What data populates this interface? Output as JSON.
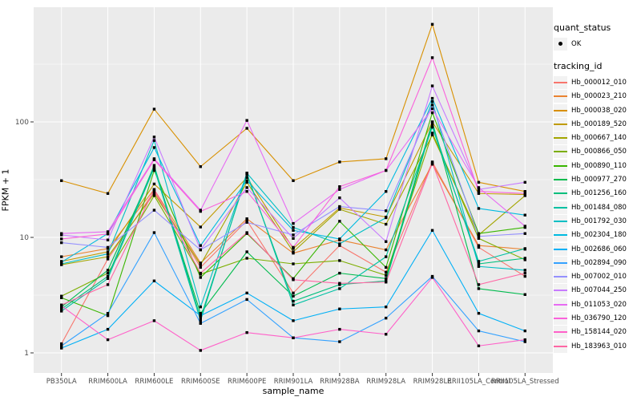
{
  "chart_data": {
    "type": "line",
    "title": "",
    "xlabel": "sample_name",
    "ylabel": "FPKM + 1",
    "y_scale": "log10",
    "y_ticks": [
      1,
      10,
      100
    ],
    "y_minor_ticks": [
      3.1623,
      31.623,
      316.23
    ],
    "ylim": [
      0.67,
      970
    ],
    "panel_bg": "#EBEBEB",
    "grid_color": "#FFFFFF",
    "point_color": "#000000",
    "tick_color": "#333333",
    "tick_label_color": "#4D4D4D",
    "categories": [
      "PB350LA",
      "RRIM600LA",
      "RRIM600LE",
      "RRIM600SE",
      "RRIM600PE",
      "RRIM901LA",
      "RRIM928BA",
      "RRIM928LA",
      "RRIM928LE",
      "RRII105LA_Control",
      "RRII105LA_Stressed"
    ],
    "series": [
      {
        "name": "Hb_000012_010",
        "color": "#F8766D",
        "values": [
          1.2,
          6.5,
          25,
          5.5,
          14,
          3.3,
          8.5,
          5.0,
          45,
          8.2,
          4.6
        ]
      },
      {
        "name": "Hb_000023_210",
        "color": "#EA8331",
        "values": [
          6.8,
          8.0,
          26,
          6.0,
          14.5,
          7.3,
          9.5,
          7.8,
          43,
          8.5,
          7.9
        ]
      },
      {
        "name": "Hb_000038_020",
        "color": "#D89000",
        "values": [
          31,
          24,
          129,
          41,
          88,
          31,
          45,
          48,
          700,
          30,
          25
        ]
      },
      {
        "name": "Hb_000189_520",
        "color": "#C09B00",
        "values": [
          6.2,
          7.5,
          29,
          12.3,
          33,
          8.0,
          18,
          15,
          100,
          24,
          23.5
        ]
      },
      {
        "name": "Hb_000667_140",
        "color": "#A3A500",
        "values": [
          5.8,
          6.8,
          24,
          5.8,
          30,
          7.5,
          17.5,
          13,
          77,
          10.5,
          23
        ]
      },
      {
        "name": "Hb_000866_050",
        "color": "#7CAE00",
        "values": [
          3.1,
          4.9,
          23,
          4.8,
          6.6,
          5.9,
          6.3,
          4.7,
          80,
          9.8,
          6.4
        ]
      },
      {
        "name": "Hb_000890_110",
        "color": "#39B600",
        "values": [
          3.0,
          2.1,
          38,
          4.5,
          10.8,
          4.4,
          13.8,
          5.5,
          120,
          10.8,
          12.2
        ]
      },
      {
        "name": "Hb_000977_270",
        "color": "#00BB4E",
        "values": [
          2.5,
          5.2,
          40,
          2.2,
          7.5,
          3.1,
          4.9,
          4.4,
          100,
          3.6,
          3.2
        ]
      },
      {
        "name": "Hb_001256_160",
        "color": "#00BF7D",
        "values": [
          2.4,
          4.6,
          42,
          2.0,
          35,
          2.8,
          3.9,
          4.2,
          95,
          5.9,
          6.6
        ]
      },
      {
        "name": "Hb_001484_080",
        "color": "#00C1A3",
        "values": [
          2.3,
          4.4,
          40,
          1.9,
          36,
          2.6,
          3.6,
          6.8,
          90,
          6.2,
          8.0
        ]
      },
      {
        "name": "Hb_001792_030",
        "color": "#00BFC4",
        "values": [
          5.9,
          7.2,
          69,
          2.5,
          36,
          12.2,
          8.8,
          14.8,
          150,
          5.6,
          5.2
        ]
      },
      {
        "name": "Hb_002304_180",
        "color": "#00BAE0",
        "values": [
          6.1,
          10.8,
          60,
          8.5,
          31,
          11.5,
          9.7,
          25,
          160,
          17.8,
          15.6
        ]
      },
      {
        "name": "Hb_002686_060",
        "color": "#00B0F6",
        "values": [
          1.1,
          1.6,
          4.2,
          2.1,
          3.3,
          1.9,
          2.4,
          2.5,
          11.5,
          2.2,
          1.55
        ]
      },
      {
        "name": "Hb_002894_090",
        "color": "#35A2FF",
        "values": [
          1.15,
          2.2,
          11,
          1.8,
          2.9,
          1.35,
          1.25,
          2.0,
          4.6,
          1.55,
          1.25
        ]
      },
      {
        "name": "Hb_007002_010",
        "color": "#9590FF",
        "values": [
          9.0,
          8.2,
          17.2,
          7.8,
          13.5,
          10.5,
          18.5,
          17,
          140,
          10.2,
          10.8
        ]
      },
      {
        "name": "Hb_007044_250",
        "color": "#C77CFF",
        "values": [
          10.5,
          9.5,
          74,
          7.8,
          27,
          9.8,
          22,
          9.2,
          205,
          26,
          30
        ]
      },
      {
        "name": "Hb_011053_020",
        "color": "#E76BF3",
        "values": [
          10.8,
          11.2,
          48,
          17.2,
          103,
          13.2,
          26,
          38,
          130,
          27,
          12.5
        ]
      },
      {
        "name": "Hb_036790_120",
        "color": "#FA62DB",
        "values": [
          9.7,
          10.7,
          47,
          16.8,
          25,
          8.2,
          27.5,
          38,
          360,
          25,
          24
        ]
      },
      {
        "name": "Hb_158144_020",
        "color": "#FF61C9",
        "values": [
          2.55,
          1.3,
          1.9,
          1.05,
          1.5,
          1.35,
          1.6,
          1.45,
          4.5,
          1.15,
          1.3
        ]
      },
      {
        "name": "Hb_183963_010",
        "color": "#FF67A4",
        "values": [
          2.6,
          3.9,
          26,
          4.9,
          11,
          4.3,
          4.0,
          4.1,
          44,
          3.9,
          4.9
        ]
      }
    ],
    "legend": {
      "position": "right",
      "quant_status": {
        "title": "quant_status",
        "items": [
          {
            "label": "OK",
            "symbol": "point",
            "color": "#000000"
          }
        ]
      },
      "tracking_id": {
        "title": "tracking_id"
      }
    }
  }
}
